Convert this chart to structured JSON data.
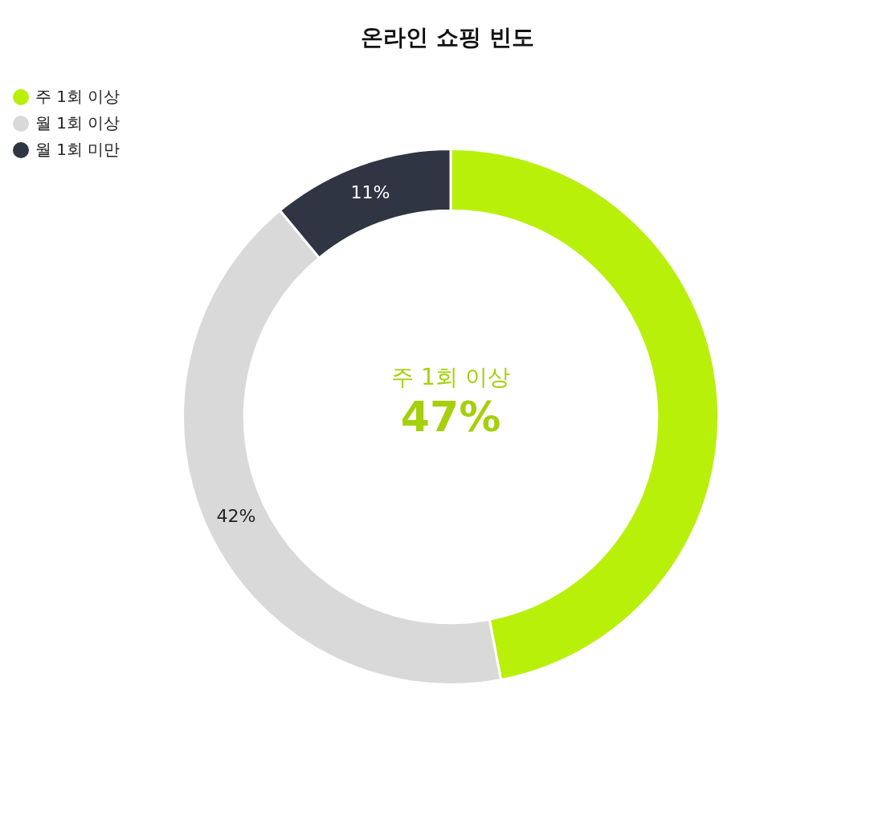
{
  "chart_data": {
    "type": "donut",
    "title": "온라인 쇼핑 빈도",
    "categories": [
      "주 1회 이상",
      "월 1회 이상",
      "월 1회 미만"
    ],
    "values": [
      47,
      42,
      11
    ],
    "colors": [
      "#b8f00a",
      "#d9d9d9",
      "#2f3542"
    ],
    "value_labels": [
      null,
      "42%",
      "11%"
    ],
    "annotations": [
      "주 1회 이상",
      "47%"
    ],
    "legend": "top left"
  }
}
